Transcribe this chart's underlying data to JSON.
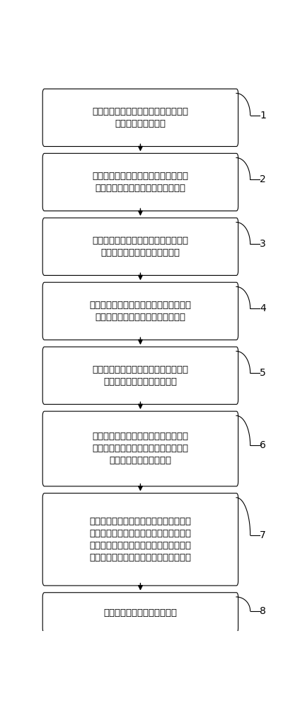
{
  "bg_color": "#ffffff",
  "box_color": "#ffffff",
  "box_edge_color": "#000000",
  "arrow_color": "#000000",
  "text_color": "#000000",
  "number_color": "#000000",
  "font_size": 9.5,
  "number_font_size": 10,
  "fig_width": 4.24,
  "fig_height": 10.0,
  "boxes": [
    {
      "id": 1,
      "label": "提取给定医学图像的灰度特征，得到医\n学图像的特征信息集",
      "number": "1",
      "n_lines": 2
    },
    {
      "id": 2,
      "label": "利用医学图像的特征信息和邻域信息，\n基于滤波技术对医学图像进行预处理",
      "number": "2",
      "n_lines": 2
    },
    {
      "id": 3,
      "label": "计算滤波后医学图像的特征直方图，以\n得到滤波后医学图像的统计信息",
      "number": "3",
      "n_lines": 2
    },
    {
      "id": 4,
      "label": "基于滤波后医学图像的特征直方图，对医\n学图像中的医学组织器官进行预分割",
      "number": "4",
      "n_lines": 2
    },
    {
      "id": 5,
      "label": "基于预分割的医学组织器官，对医学组\n织器官的聚类中心进行初始化",
      "number": "5",
      "n_lines": 2
    },
    {
      "id": 6,
      "label": "基于预分割的医学组织器官，对像素的\n隶属度进行初始化，并在此基础上定义\n医学图像分割的能量函数",
      "number": "6",
      "n_lines": 3
    },
    {
      "id": 7,
      "label": "通过迭代过程对能量函数进行最小化，在\n迭代过程中，对当前的分割结果进行修正\n，并基于修正后的分割结果，对医学组织\n器官的聚类中心和像素的隶属度进行更新",
      "number": "7",
      "n_lines": 4
    },
    {
      "id": 8,
      "label": "输出最终的医学图像分割结果",
      "number": "8",
      "n_lines": 1
    }
  ]
}
